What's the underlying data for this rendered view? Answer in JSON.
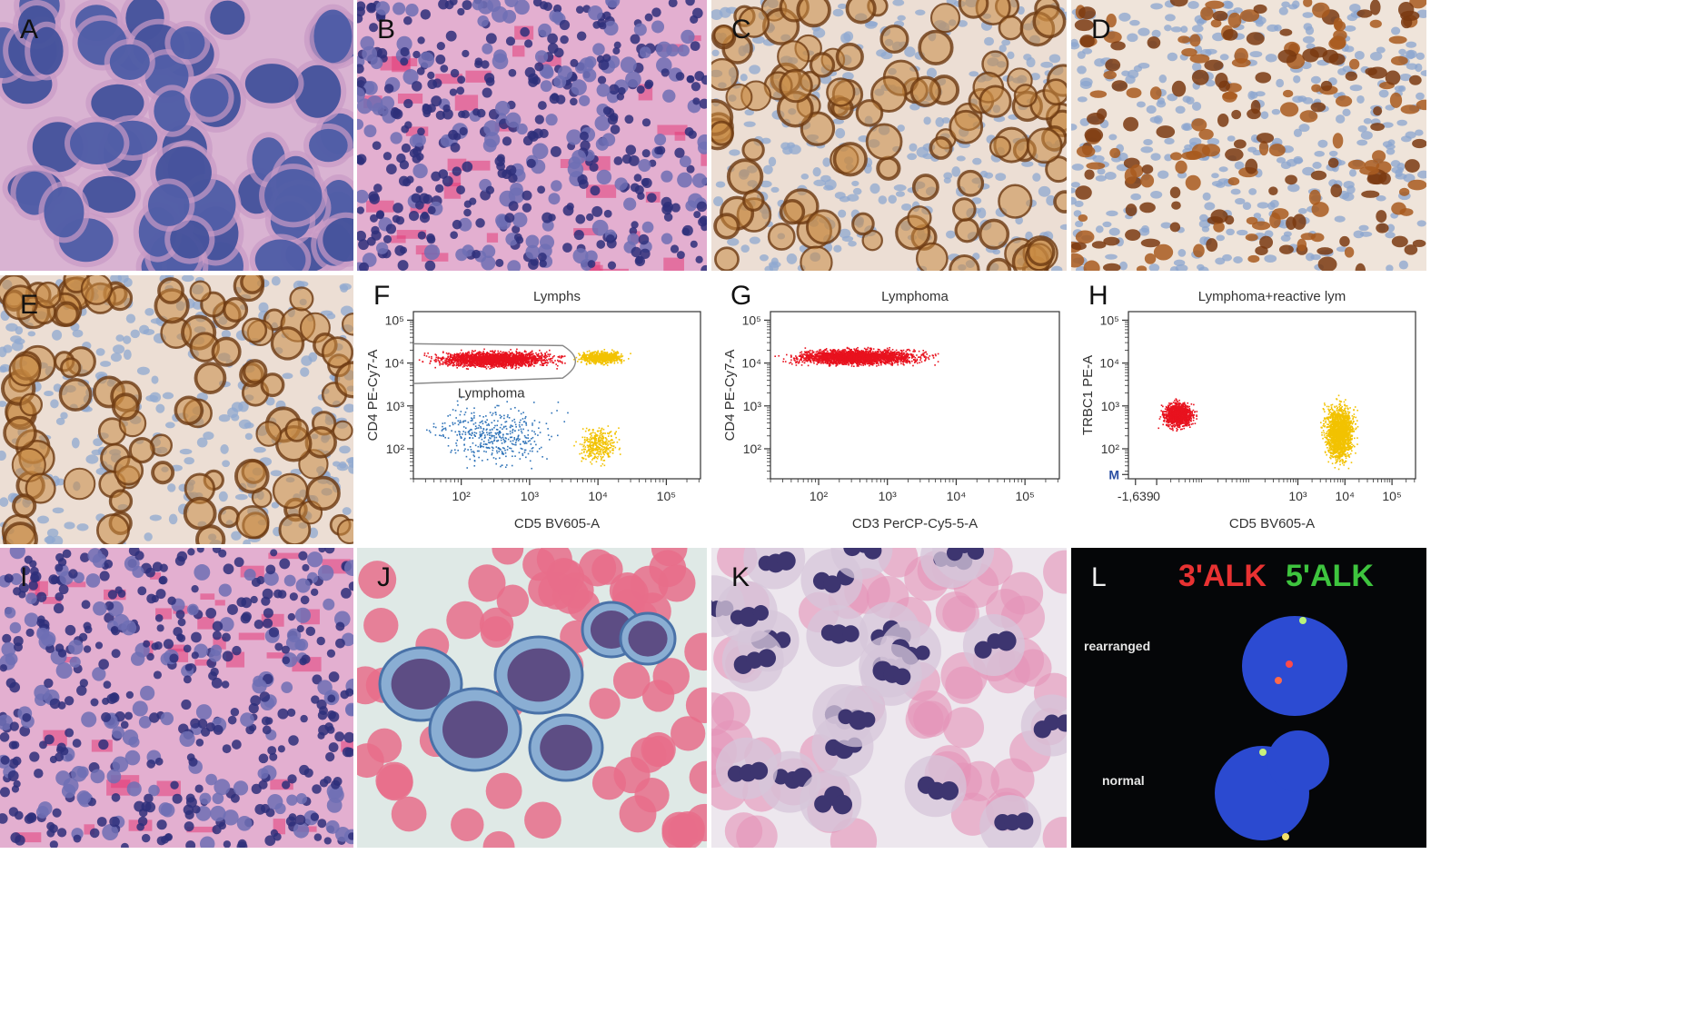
{
  "panels": {
    "A": {
      "label": "A",
      "stain": "he_highmag"
    },
    "B": {
      "label": "B",
      "stain": "he_lowmag"
    },
    "C": {
      "label": "C",
      "stain": "ihc_membrane"
    },
    "D": {
      "label": "D",
      "stain": "ihc_nuclear"
    },
    "E": {
      "label": "E",
      "stain": "ihc_membrane"
    },
    "I": {
      "label": "I",
      "stain": "he_lowmag"
    },
    "J": {
      "label": "J",
      "stain": "cytology_blue"
    },
    "K": {
      "label": "K",
      "stain": "cytology_neutrophil"
    },
    "L": {
      "label": "L",
      "stain": "fish"
    }
  },
  "fish": {
    "probe_red": "3'ALK",
    "probe_green": "5'ALK",
    "cell_top": "rearranged",
    "cell_bottom": "normal"
  },
  "colors": {
    "lymphoma": "#e8121e",
    "reactive": "#f2c200",
    "other": "#2f73b8",
    "gate": "#888888",
    "he_bg": "#e7b9d3",
    "ihc_bg": "#e9dcd0",
    "fish_bg": "#050608"
  },
  "chart_data": [
    {
      "panel": "F",
      "type": "scatter",
      "title": "Lymphs",
      "xlabel": "CD5 BV605-A",
      "ylabel": "CD4 PE-Cy7-A",
      "x_ticks": [
        "10²",
        "10³",
        "10⁴",
        "10⁵"
      ],
      "y_ticks": [
        "10²",
        "10³",
        "10⁴",
        "10⁵"
      ],
      "x_scale": "log",
      "y_scale": "log",
      "xlim": [
        20,
        300000
      ],
      "ylim": [
        20,
        150000
      ],
      "gate_label": "Lymphoma",
      "series": [
        {
          "color": "lymphoma",
          "x_log_range": [
            1.3,
            3.7
          ],
          "y_log_range": [
            3.85,
            4.35
          ],
          "count": 2200
        },
        {
          "color": "reactive",
          "x_log_range": [
            3.6,
            4.5
          ],
          "y_log_range": [
            3.95,
            4.35
          ],
          "count": 700
        },
        {
          "color": "reactive",
          "x_log_range": [
            3.6,
            4.4
          ],
          "y_log_range": [
            1.5,
            2.7
          ],
          "count": 350
        },
        {
          "color": "other",
          "x_log_range": [
            1.3,
            3.7
          ],
          "y_log_range": [
            1.4,
            3.3
          ],
          "count": 450
        }
      ]
    },
    {
      "panel": "G",
      "type": "scatter",
      "title": "Lymphoma",
      "xlabel": "CD3 PerCP-Cy5-5-A",
      "ylabel": "CD4 PE-Cy7-A",
      "x_ticks": [
        "10²",
        "10³",
        "10⁴",
        "10⁵"
      ],
      "y_ticks": [
        "10²",
        "10³",
        "10⁴",
        "10⁵"
      ],
      "x_scale": "log",
      "y_scale": "log",
      "xlim": [
        20,
        300000
      ],
      "ylim": [
        20,
        150000
      ],
      "series": [
        {
          "color": "lymphoma",
          "x_log_range": [
            1.3,
            3.8
          ],
          "y_log_range": [
            3.9,
            4.4
          ],
          "count": 2600
        }
      ]
    },
    {
      "panel": "H",
      "type": "scatter",
      "title": "Lymphoma+reactive lym",
      "xlabel": "CD5 BV605-A",
      "ylabel": "TRBC1 PE-A",
      "x_ticks": [
        "-1,639",
        "0",
        "10³",
        "10⁴",
        "10⁵"
      ],
      "y_ticks": [
        "M",
        "10²",
        "10³",
        "10⁴",
        "10⁵"
      ],
      "series": [
        {
          "color": "lymphoma",
          "x_range": [
            0.0,
            0.9
          ],
          "y_log_range": [
            2.4,
            3.2
          ],
          "count": 1200
        },
        {
          "color": "reactive",
          "x_log_range": [
            3.45,
            4.3
          ],
          "y_log_range": [
            1.5,
            3.3
          ],
          "count": 1800
        }
      ]
    }
  ]
}
